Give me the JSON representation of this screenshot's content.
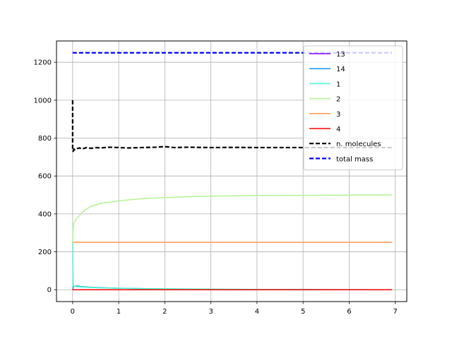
{
  "chart_data": {
    "type": "line",
    "title": "",
    "xlabel": "",
    "ylabel": "",
    "xlim": [
      -0.35,
      7.25
    ],
    "ylim": [
      -62.5,
      1312.5
    ],
    "xticks": [
      0,
      1,
      2,
      3,
      4,
      5,
      6,
      7
    ],
    "yticks": [
      0,
      200,
      400,
      600,
      800,
      1000,
      1200
    ],
    "grid": true,
    "legend_position": "top-right",
    "series": [
      {
        "name": "13",
        "color": "#8000ff",
        "style": "solid",
        "x": [
          0,
          6.93
        ],
        "y": [
          0,
          0
        ]
      },
      {
        "name": "14",
        "color": "#1996f3",
        "style": "solid",
        "x": [
          0,
          0.02,
          0.1,
          0.2,
          0.4,
          0.6,
          1.0,
          1.5,
          2.0,
          2.5,
          3.0,
          4.0,
          5.0,
          6.0,
          6.93
        ],
        "y": [
          0,
          18,
          20,
          16,
          13,
          11,
          8,
          6,
          4,
          3,
          2,
          1,
          1,
          0,
          0
        ]
      },
      {
        "name": "1",
        "color": "#4df3ce",
        "style": "solid",
        "x": [
          0,
          0.01,
          0.03,
          0.1,
          0.2,
          0.4,
          0.6,
          1.0,
          1.5,
          2.0,
          2.5,
          3.0,
          4.0,
          5.0,
          6.0,
          6.93
        ],
        "y": [
          250,
          30,
          18,
          16,
          14,
          12,
          10,
          8,
          6,
          5,
          4,
          3,
          2,
          1,
          1,
          0
        ]
      },
      {
        "name": "2",
        "color": "#b2f396",
        "style": "solid",
        "x": [
          0,
          0.01,
          0.03,
          0.08,
          0.15,
          0.25,
          0.4,
          0.6,
          0.8,
          1.0,
          1.25,
          1.5,
          2.0,
          2.5,
          3.0,
          4.0,
          5.0,
          6.0,
          6.93
        ],
        "y": [
          250,
          320,
          355,
          375,
          390,
          418,
          440,
          455,
          462,
          468,
          475,
          480,
          486,
          491,
          494,
          497,
          498,
          499,
          499
        ]
      },
      {
        "name": "3",
        "color": "#ff964f",
        "style": "solid",
        "x": [
          0,
          6.93
        ],
        "y": [
          250,
          250
        ]
      },
      {
        "name": "4",
        "color": "#ff0000",
        "style": "solid",
        "x": [
          0,
          6.93
        ],
        "y": [
          0,
          0
        ]
      },
      {
        "name": "n. molecules",
        "color": "#000000",
        "style": "dashed",
        "x": [
          0,
          0.0,
          0.01,
          0.03,
          0.05,
          0.1,
          0.15,
          0.2,
          0.3,
          0.4,
          0.5,
          0.6,
          0.8,
          1.0,
          1.2,
          1.5,
          1.8,
          2.0,
          2.2,
          2.5,
          3.0,
          3.5,
          4.0,
          5.0,
          6.0,
          6.93
        ],
        "y": [
          1000,
          740,
          730,
          742,
          738,
          745,
          748,
          742,
          750,
          746,
          750,
          748,
          752,
          750,
          748,
          750,
          752,
          755,
          750,
          752,
          750,
          751,
          750,
          750,
          750,
          750
        ]
      },
      {
        "name": "total mass",
        "color": "#0000ff",
        "style": "dashed",
        "x": [
          0,
          6.93
        ],
        "y": [
          1250,
          1250
        ]
      }
    ]
  }
}
